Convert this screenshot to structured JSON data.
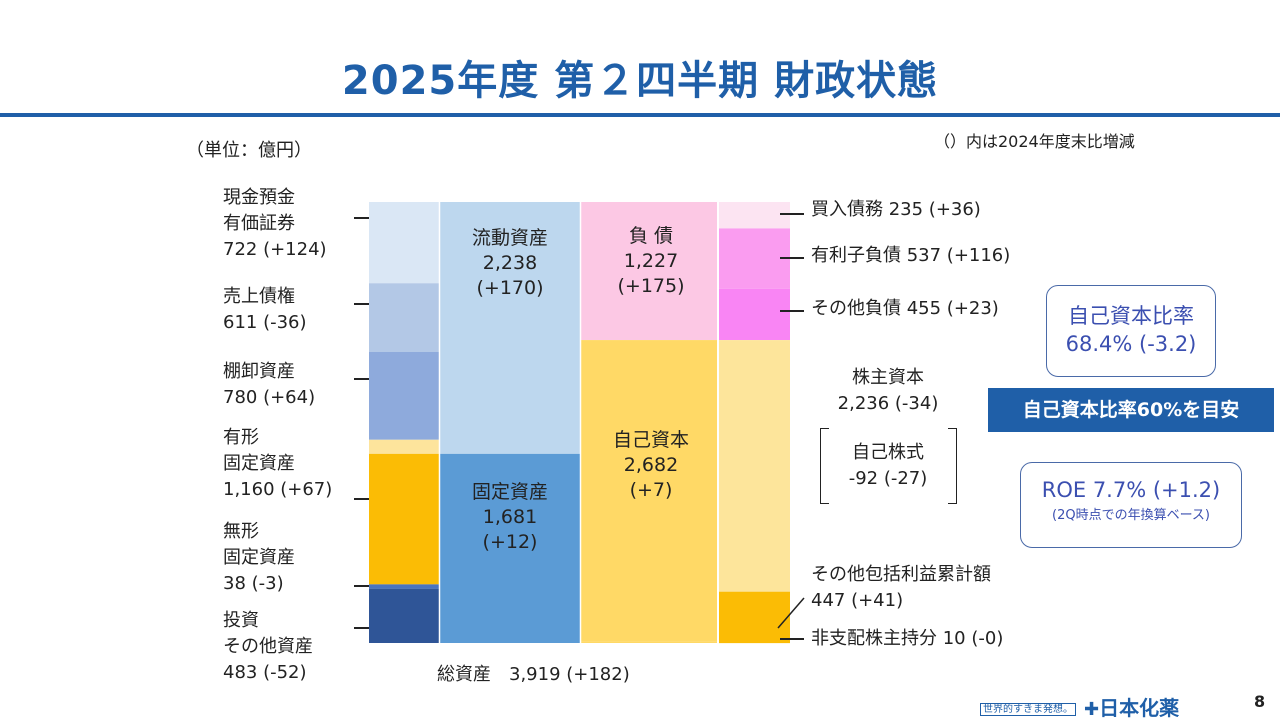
{
  "title": "2025年度 第２四半期 財政状態",
  "unit_label": "（単位：億円）",
  "note": "（）内は2024年度末比増減",
  "chart_data": {
    "type": "bar",
    "title": "2025年度 第２四半期 財政状態",
    "ylabel": "億円",
    "total": 3919,
    "ylim": [
      0,
      3919
    ],
    "columns": [
      {
        "name": "asset-detail",
        "segments": [
          {
            "key": "cash",
            "label": "現金預金\n有価証券\n722 (+124)",
            "value": 722,
            "change": 124,
            "color": "#dae7f5"
          },
          {
            "key": "receivables",
            "label": "売上債権\n611 (-36)",
            "value": 611,
            "change": -36,
            "color": "#b3c8e6"
          },
          {
            "key": "inventory",
            "label": "棚卸資産\n780 (+64)",
            "value": 780,
            "change": 64,
            "color": "#8eaadc"
          },
          {
            "key": "other-current",
            "label": "",
            "value": 125,
            "change": null,
            "color": "#fde49c"
          },
          {
            "key": "tangible",
            "label": "有形\n固定資産\n1,160 (+67)",
            "value": 1160,
            "change": 67,
            "color": "#fbbc05"
          },
          {
            "key": "intangible",
            "label": "無形\n固定資産\n38 (-3)",
            "value": 38,
            "change": -3,
            "color": "#4a74bf"
          },
          {
            "key": "investments",
            "label": "投資\nその他資産\n483 (-52)",
            "value": 483,
            "change": -52,
            "color": "#2f5597"
          }
        ]
      },
      {
        "name": "asset-summary",
        "segments": [
          {
            "key": "current-assets",
            "label": "流動資産\n2,238\n(+170)",
            "value": 2238,
            "change": 170,
            "color": "#bdd7ee"
          },
          {
            "key": "fixed-assets",
            "label": "固定資産\n1,681\n(+12)",
            "value": 1681,
            "change": 12,
            "color": "#5b9bd5"
          }
        ]
      },
      {
        "name": "liab-equity-summary",
        "segments": [
          {
            "key": "liabilities",
            "label": "負 債\n1,227\n(+175)",
            "value": 1227,
            "change": 175,
            "color": "#fcc8e4"
          },
          {
            "key": "equity",
            "label": "自己資本\n2,682\n(+7)",
            "value": 2682,
            "change": 7,
            "color": "#ffd966"
          },
          {
            "key": "nci-sum",
            "label": "",
            "value": 10,
            "change": null,
            "color": "#ffd966"
          }
        ]
      },
      {
        "name": "liab-equity-detail",
        "segments": [
          {
            "key": "payables",
            "label": "買入債務 235 (+36)",
            "value": 235,
            "change": 36,
            "color": "#fce4f2"
          },
          {
            "key": "debt",
            "label": "有利子負債 537 (+116)",
            "value": 537,
            "change": 116,
            "color": "#fa9cf0"
          },
          {
            "key": "other-liab",
            "label": "その他負債 455 (+23)",
            "value": 455,
            "change": 23,
            "color": "#f985f4"
          },
          {
            "key": "shareholders-equity",
            "label": "株主資本\n2,236 (-34)",
            "value": 2236,
            "change": -34,
            "color": "#fde59b"
          },
          {
            "key": "aoci",
            "label": "その他包括利益累計額\n447 (+41)",
            "value": 447,
            "change": 41,
            "color": "#fbbc05"
          },
          {
            "key": "nci",
            "label": "非支配株主持分 10 (-0)",
            "value": 10,
            "change": 0,
            "color": "#fbbc05"
          }
        ]
      }
    ],
    "total_label": "総資産　3,919 (+182)",
    "treasury_stock_label": "自己株式\n-92 (-27)"
  },
  "kpis": {
    "equity_ratio": "自己資本比率\n68.4% (-3.2)",
    "target": "自己資本比率60%を目安",
    "roe": "ROE 7.7% (+1.2)",
    "roe_note": "(2Q時点での年換算ベース)"
  },
  "footer": {
    "tagline": "世界的すきま発想。",
    "company": "日本化薬",
    "page": "8"
  }
}
